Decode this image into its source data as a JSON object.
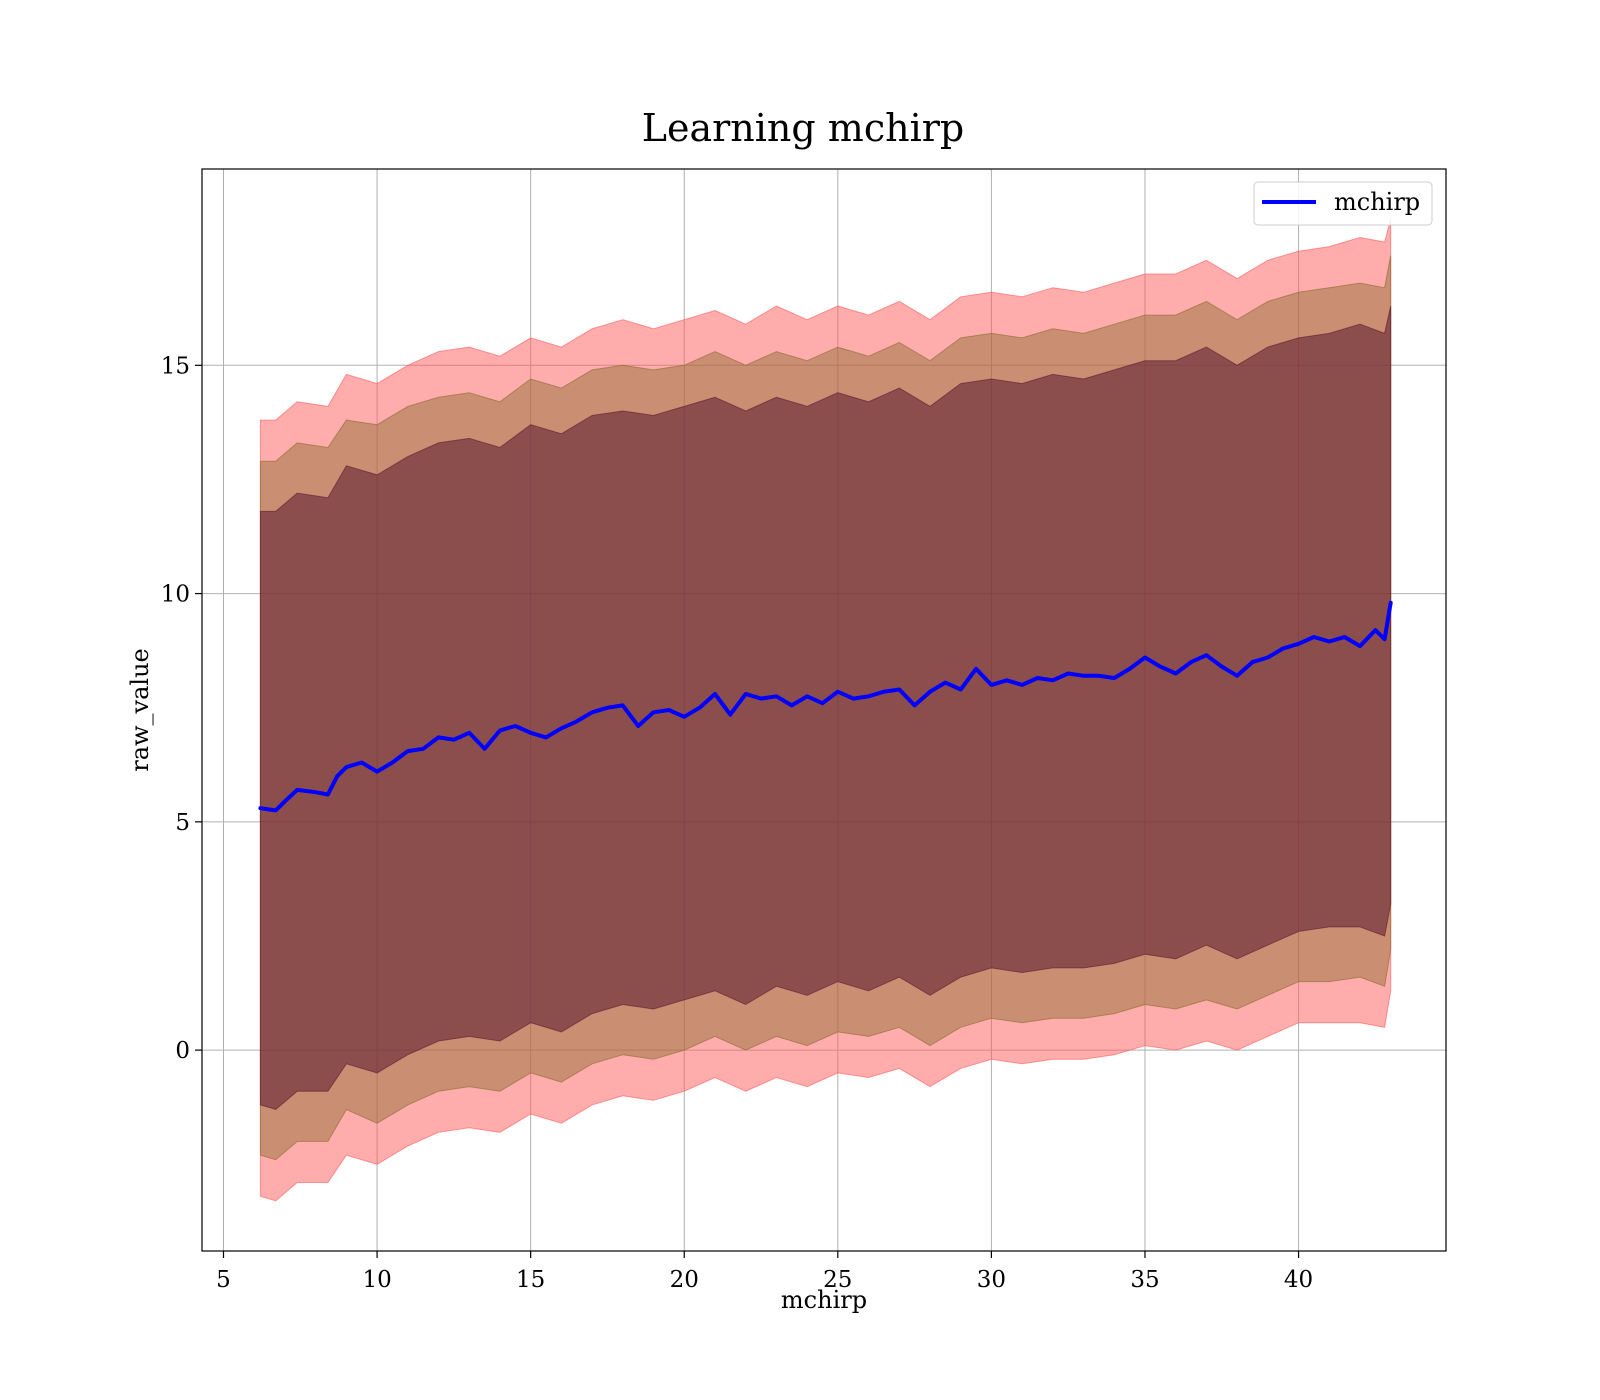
{
  "chart_data": {
    "type": "area",
    "title": "Learning mchirp",
    "xlabel": "mchirp",
    "ylabel": "raw_value",
    "xlim": [
      4.3,
      44.8
    ],
    "ylim": [
      -4.4,
      19.3
    ],
    "xticks": [
      5,
      10,
      15,
      20,
      25,
      30,
      35,
      40
    ],
    "yticks": [
      0,
      5,
      10,
      15
    ],
    "grid": true,
    "legend_position": "top-right",
    "series": [
      {
        "name": "mchirp",
        "kind": "line",
        "color": "#0000ff",
        "x": [
          6.2,
          6.7,
          7.0,
          7.4,
          8.0,
          8.4,
          8.7,
          9.0,
          9.5,
          10.0,
          10.5,
          11.0,
          11.5,
          12.0,
          12.5,
          13.0,
          13.5,
          14.0,
          14.5,
          15.0,
          15.5,
          16.0,
          16.5,
          17.0,
          17.5,
          18.0,
          18.5,
          19.0,
          19.5,
          20.0,
          20.5,
          21.0,
          21.5,
          22.0,
          22.5,
          23.0,
          23.5,
          24.0,
          24.5,
          25.0,
          25.5,
          26.0,
          26.5,
          27.0,
          27.5,
          28.0,
          28.5,
          29.0,
          29.5,
          30.0,
          30.5,
          31.0,
          31.5,
          32.0,
          32.5,
          33.0,
          33.5,
          34.0,
          34.5,
          35.0,
          35.5,
          36.0,
          36.5,
          37.0,
          37.5,
          38.0,
          38.5,
          39.0,
          39.5,
          40.0,
          40.5,
          41.0,
          41.5,
          42.0,
          42.5,
          42.8,
          43.0
        ],
        "y": [
          5.3,
          5.25,
          5.45,
          5.7,
          5.65,
          5.6,
          6.0,
          6.2,
          6.3,
          6.1,
          6.3,
          6.55,
          6.6,
          6.85,
          6.8,
          6.95,
          6.6,
          7.0,
          7.1,
          6.95,
          6.85,
          7.05,
          7.2,
          7.4,
          7.5,
          7.55,
          7.1,
          7.4,
          7.45,
          7.3,
          7.5,
          7.8,
          7.35,
          7.8,
          7.7,
          7.75,
          7.55,
          7.75,
          7.6,
          7.85,
          7.7,
          7.75,
          7.85,
          7.9,
          7.55,
          7.85,
          8.05,
          7.9,
          8.35,
          8.0,
          8.1,
          8.0,
          8.15,
          8.1,
          8.25,
          8.2,
          8.2,
          8.15,
          8.35,
          8.6,
          8.4,
          8.25,
          8.5,
          8.65,
          8.4,
          8.2,
          8.5,
          8.6,
          8.8,
          8.9,
          9.05,
          8.95,
          9.05,
          8.85,
          9.2,
          9.0,
          9.8
        ]
      },
      {
        "name": "",
        "kind": "band",
        "color": "#ff5a5a",
        "opacity": 0.5,
        "x": [
          6.2,
          6.7,
          7.4,
          8.4,
          9.0,
          10.0,
          11.0,
          12.0,
          13.0,
          14.0,
          15.0,
          16.0,
          17.0,
          18.0,
          19.0,
          20.0,
          21.0,
          22.0,
          23.0,
          24.0,
          25.0,
          26.0,
          27.0,
          28.0,
          29.0,
          30.0,
          31.0,
          32.0,
          33.0,
          34.0,
          35.0,
          36.0,
          37.0,
          38.0,
          39.0,
          40.0,
          41.0,
          42.0,
          42.8,
          43.0
        ],
        "upper": [
          13.8,
          13.8,
          14.2,
          14.1,
          14.8,
          14.6,
          15.0,
          15.3,
          15.4,
          15.2,
          15.6,
          15.4,
          15.8,
          16.0,
          15.8,
          16.0,
          16.2,
          15.9,
          16.3,
          16.0,
          16.3,
          16.1,
          16.4,
          16.0,
          16.5,
          16.6,
          16.5,
          16.7,
          16.6,
          16.8,
          17.0,
          17.0,
          17.3,
          16.9,
          17.3,
          17.5,
          17.6,
          17.8,
          17.7,
          18.2
        ],
        "lower": [
          -3.2,
          -3.3,
          -2.9,
          -2.9,
          -2.3,
          -2.5,
          -2.1,
          -1.8,
          -1.7,
          -1.8,
          -1.4,
          -1.6,
          -1.2,
          -1.0,
          -1.1,
          -0.9,
          -0.6,
          -0.9,
          -0.6,
          -0.8,
          -0.5,
          -0.6,
          -0.4,
          -0.8,
          -0.4,
          -0.2,
          -0.3,
          -0.2,
          -0.2,
          -0.1,
          0.1,
          0.0,
          0.2,
          0.0,
          0.3,
          0.6,
          0.6,
          0.6,
          0.5,
          1.3
        ]
      },
      {
        "name": "",
        "kind": "band",
        "color": "#8a6a2e",
        "opacity": 0.45,
        "x": [
          6.2,
          6.7,
          7.4,
          8.4,
          9.0,
          10.0,
          11.0,
          12.0,
          13.0,
          14.0,
          15.0,
          16.0,
          17.0,
          18.0,
          19.0,
          20.0,
          21.0,
          22.0,
          23.0,
          24.0,
          25.0,
          26.0,
          27.0,
          28.0,
          29.0,
          30.0,
          31.0,
          32.0,
          33.0,
          34.0,
          35.0,
          36.0,
          37.0,
          38.0,
          39.0,
          40.0,
          41.0,
          42.0,
          42.8,
          43.0
        ],
        "upper": [
          12.9,
          12.9,
          13.3,
          13.2,
          13.8,
          13.7,
          14.1,
          14.3,
          14.4,
          14.2,
          14.7,
          14.5,
          14.9,
          15.0,
          14.9,
          15.0,
          15.3,
          15.0,
          15.3,
          15.1,
          15.4,
          15.2,
          15.5,
          15.1,
          15.6,
          15.7,
          15.6,
          15.8,
          15.7,
          15.9,
          16.1,
          16.1,
          16.4,
          16.0,
          16.4,
          16.6,
          16.7,
          16.8,
          16.7,
          17.4
        ],
        "lower": [
          -2.3,
          -2.4,
          -2.0,
          -2.0,
          -1.3,
          -1.6,
          -1.2,
          -0.9,
          -0.8,
          -0.9,
          -0.5,
          -0.7,
          -0.3,
          -0.1,
          -0.2,
          0.0,
          0.3,
          0.0,
          0.3,
          0.1,
          0.4,
          0.3,
          0.5,
          0.1,
          0.5,
          0.7,
          0.6,
          0.7,
          0.7,
          0.8,
          1.0,
          0.9,
          1.1,
          0.9,
          1.2,
          1.5,
          1.5,
          1.6,
          1.4,
          2.2
        ]
      },
      {
        "name": "",
        "kind": "band",
        "color": "#5a1a2e",
        "opacity": 0.55,
        "x": [
          6.2,
          6.7,
          7.4,
          8.4,
          9.0,
          10.0,
          11.0,
          12.0,
          13.0,
          14.0,
          15.0,
          16.0,
          17.0,
          18.0,
          19.0,
          20.0,
          21.0,
          22.0,
          23.0,
          24.0,
          25.0,
          26.0,
          27.0,
          28.0,
          29.0,
          30.0,
          31.0,
          32.0,
          33.0,
          34.0,
          35.0,
          36.0,
          37.0,
          38.0,
          39.0,
          40.0,
          41.0,
          42.0,
          42.8,
          43.0
        ],
        "upper": [
          11.8,
          11.8,
          12.2,
          12.1,
          12.8,
          12.6,
          13.0,
          13.3,
          13.4,
          13.2,
          13.7,
          13.5,
          13.9,
          14.0,
          13.9,
          14.1,
          14.3,
          14.0,
          14.3,
          14.1,
          14.4,
          14.2,
          14.5,
          14.1,
          14.6,
          14.7,
          14.6,
          14.8,
          14.7,
          14.9,
          15.1,
          15.1,
          15.4,
          15.0,
          15.4,
          15.6,
          15.7,
          15.9,
          15.7,
          16.3
        ],
        "lower": [
          -1.2,
          -1.3,
          -0.9,
          -0.9,
          -0.3,
          -0.5,
          -0.1,
          0.2,
          0.3,
          0.2,
          0.6,
          0.4,
          0.8,
          1.0,
          0.9,
          1.1,
          1.3,
          1.0,
          1.4,
          1.2,
          1.5,
          1.3,
          1.6,
          1.2,
          1.6,
          1.8,
          1.7,
          1.8,
          1.8,
          1.9,
          2.1,
          2.0,
          2.3,
          2.0,
          2.3,
          2.6,
          2.7,
          2.7,
          2.5,
          3.2
        ]
      }
    ]
  }
}
